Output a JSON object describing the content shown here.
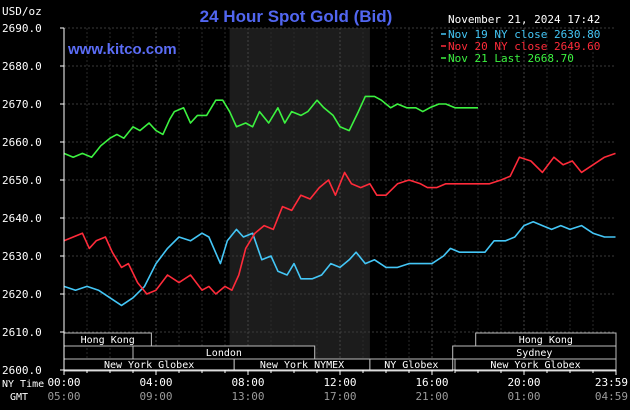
{
  "header": {
    "unit": "USD/oz",
    "title": "24 Hour Spot Gold (Bid)",
    "watermark": "www.kitco.com",
    "timestamp": "November 21, 2024 17:42"
  },
  "legend": [
    {
      "label": "Nov 19 NY close 2630.80",
      "color": "#44c6f6"
    },
    {
      "label": "Nov 20 NY close 2649.60",
      "color": "#ff2b3a"
    },
    {
      "label": "Nov 21 Last 2668.70",
      "color": "#3cf240"
    }
  ],
  "time_rows": {
    "ny_label": "NY Time",
    "gmt_label": "GMT",
    "ny_ticks": [
      "00:00",
      "04:00",
      "08:00",
      "12:00",
      "16:00",
      "20:00",
      "23:59"
    ],
    "gmt_ticks": [
      "05:00",
      "09:00",
      "13:00",
      "17:00",
      "21:00",
      "01:00",
      "04:59"
    ]
  },
  "sessions": [
    {
      "label": "Hong Kong",
      "start_hour": 0,
      "end_hour": 3.8
    },
    {
      "label": "Hong Kong",
      "start_hour": 17.9,
      "end_hour": 24
    },
    {
      "label": "London",
      "start_hour": 3,
      "end_hour": 10.9
    },
    {
      "label": "Sydney",
      "start_hour": 16.9,
      "end_hour": 24
    },
    {
      "label": "New York Globex",
      "start_hour": 0,
      "end_hour": 7.4
    },
    {
      "label": "New York NYMEX",
      "start_hour": 7.4,
      "end_hour": 13.3
    },
    {
      "label": "NY Globex",
      "start_hour": 13.3,
      "end_hour": 16.9
    },
    {
      "label": "New York Globex",
      "start_hour": 17,
      "end_hour": 24
    }
  ],
  "chart_data": {
    "type": "line",
    "x_unit": "hours (NY time)",
    "ylim": [
      2600,
      2690
    ],
    "y_ticks": [
      "2600.0",
      "2610.0",
      "2620.0",
      "2630.0",
      "2640.0",
      "2650.0",
      "2660.0",
      "2670.0",
      "2680.0",
      "2690.0"
    ],
    "highlight_hours": [
      7.2,
      13.3
    ],
    "series": [
      {
        "name": "Nov 19 NY close 2630.80",
        "color": "#44c6f6",
        "points": [
          [
            0,
            2622
          ],
          [
            0.5,
            2621
          ],
          [
            1,
            2622
          ],
          [
            1.5,
            2621
          ],
          [
            2,
            2619
          ],
          [
            2.5,
            2617
          ],
          [
            3,
            2619
          ],
          [
            3.5,
            2622
          ],
          [
            4,
            2628
          ],
          [
            4.5,
            2632
          ],
          [
            5,
            2635
          ],
          [
            5.5,
            2634
          ],
          [
            6,
            2636
          ],
          [
            6.3,
            2635
          ],
          [
            6.8,
            2628
          ],
          [
            7.1,
            2634
          ],
          [
            7.5,
            2637
          ],
          [
            7.8,
            2635
          ],
          [
            8.2,
            2636
          ],
          [
            8.6,
            2629
          ],
          [
            9,
            2630
          ],
          [
            9.3,
            2626
          ],
          [
            9.7,
            2625
          ],
          [
            10,
            2628
          ],
          [
            10.3,
            2624
          ],
          [
            10.8,
            2624
          ],
          [
            11.2,
            2625
          ],
          [
            11.6,
            2628
          ],
          [
            12,
            2627
          ],
          [
            12.4,
            2629
          ],
          [
            12.7,
            2631
          ],
          [
            13.1,
            2628
          ],
          [
            13.5,
            2629
          ],
          [
            14,
            2627
          ],
          [
            14.5,
            2627
          ],
          [
            15,
            2628
          ],
          [
            15.5,
            2628
          ],
          [
            16,
            2628
          ],
          [
            16.5,
            2630
          ],
          [
            16.8,
            2632
          ],
          [
            17.2,
            2631
          ],
          [
            17.7,
            2631
          ],
          [
            18.3,
            2631
          ],
          [
            18.7,
            2634
          ],
          [
            19.2,
            2634
          ],
          [
            19.6,
            2635
          ],
          [
            20,
            2638
          ],
          [
            20.4,
            2639
          ],
          [
            20.8,
            2638
          ],
          [
            21.2,
            2637
          ],
          [
            21.6,
            2638
          ],
          [
            22,
            2637
          ],
          [
            22.5,
            2638
          ],
          [
            23,
            2636
          ],
          [
            23.5,
            2635
          ],
          [
            23.98,
            2635
          ]
        ]
      },
      {
        "name": "Nov 20 NY close 2649.60",
        "color": "#ff2b3a",
        "points": [
          [
            0,
            2634
          ],
          [
            0.4,
            2635
          ],
          [
            0.8,
            2636
          ],
          [
            1.1,
            2632
          ],
          [
            1.4,
            2634
          ],
          [
            1.8,
            2635
          ],
          [
            2.1,
            2631
          ],
          [
            2.5,
            2627
          ],
          [
            2.8,
            2628
          ],
          [
            3.2,
            2623
          ],
          [
            3.6,
            2620
          ],
          [
            4,
            2621
          ],
          [
            4.5,
            2625
          ],
          [
            5,
            2623
          ],
          [
            5.5,
            2625
          ],
          [
            6,
            2621
          ],
          [
            6.3,
            2622
          ],
          [
            6.6,
            2620
          ],
          [
            7,
            2622
          ],
          [
            7.3,
            2621
          ],
          [
            7.6,
            2625
          ],
          [
            7.9,
            2632
          ],
          [
            8.3,
            2636
          ],
          [
            8.7,
            2638
          ],
          [
            9.1,
            2637
          ],
          [
            9.5,
            2643
          ],
          [
            9.9,
            2642
          ],
          [
            10.3,
            2646
          ],
          [
            10.7,
            2645
          ],
          [
            11.1,
            2648
          ],
          [
            11.5,
            2650
          ],
          [
            11.8,
            2646
          ],
          [
            12.2,
            2652
          ],
          [
            12.5,
            2649
          ],
          [
            12.9,
            2648
          ],
          [
            13.3,
            2649
          ],
          [
            13.6,
            2646
          ],
          [
            14,
            2646
          ],
          [
            14.5,
            2649
          ],
          [
            15,
            2650
          ],
          [
            15.5,
            2649
          ],
          [
            15.8,
            2648
          ],
          [
            16.2,
            2648
          ],
          [
            16.6,
            2649
          ],
          [
            17,
            2649
          ],
          [
            17.5,
            2649
          ],
          [
            18,
            2649
          ],
          [
            18.5,
            2649
          ],
          [
            19,
            2650
          ],
          [
            19.4,
            2651
          ],
          [
            19.8,
            2656
          ],
          [
            20.3,
            2655
          ],
          [
            20.8,
            2652
          ],
          [
            21.3,
            2656
          ],
          [
            21.7,
            2654
          ],
          [
            22.1,
            2655
          ],
          [
            22.5,
            2652
          ],
          [
            23,
            2654
          ],
          [
            23.5,
            2656
          ],
          [
            23.98,
            2657
          ]
        ]
      },
      {
        "name": "Nov 21 Last 2668.70",
        "color": "#3cf240",
        "points": [
          [
            0,
            2657
          ],
          [
            0.4,
            2656
          ],
          [
            0.8,
            2657
          ],
          [
            1.2,
            2656
          ],
          [
            1.6,
            2659
          ],
          [
            2,
            2661
          ],
          [
            2.3,
            2662
          ],
          [
            2.6,
            2661
          ],
          [
            3,
            2664
          ],
          [
            3.3,
            2663
          ],
          [
            3.7,
            2665
          ],
          [
            4,
            2663
          ],
          [
            4.3,
            2662
          ],
          [
            4.6,
            2666
          ],
          [
            4.8,
            2668
          ],
          [
            5.2,
            2669
          ],
          [
            5.5,
            2665
          ],
          [
            5.8,
            2667
          ],
          [
            6.2,
            2667
          ],
          [
            6.6,
            2671
          ],
          [
            6.9,
            2671
          ],
          [
            7.2,
            2668
          ],
          [
            7.5,
            2664
          ],
          [
            7.9,
            2665
          ],
          [
            8.2,
            2664
          ],
          [
            8.5,
            2668
          ],
          [
            8.9,
            2665
          ],
          [
            9.3,
            2669
          ],
          [
            9.6,
            2665
          ],
          [
            9.9,
            2668
          ],
          [
            10.3,
            2667
          ],
          [
            10.6,
            2668
          ],
          [
            11,
            2671
          ],
          [
            11.3,
            2669
          ],
          [
            11.7,
            2667
          ],
          [
            12,
            2664
          ],
          [
            12.4,
            2663
          ],
          [
            12.8,
            2668
          ],
          [
            13.1,
            2672
          ],
          [
            13.5,
            2672
          ],
          [
            13.8,
            2671
          ],
          [
            14.2,
            2669
          ],
          [
            14.5,
            2670
          ],
          [
            14.9,
            2669
          ],
          [
            15.3,
            2669
          ],
          [
            15.6,
            2668
          ],
          [
            15.9,
            2669
          ],
          [
            16.3,
            2670
          ],
          [
            16.6,
            2670
          ],
          [
            17,
            2669
          ],
          [
            17.5,
            2669
          ],
          [
            18,
            2669
          ]
        ]
      }
    ]
  }
}
